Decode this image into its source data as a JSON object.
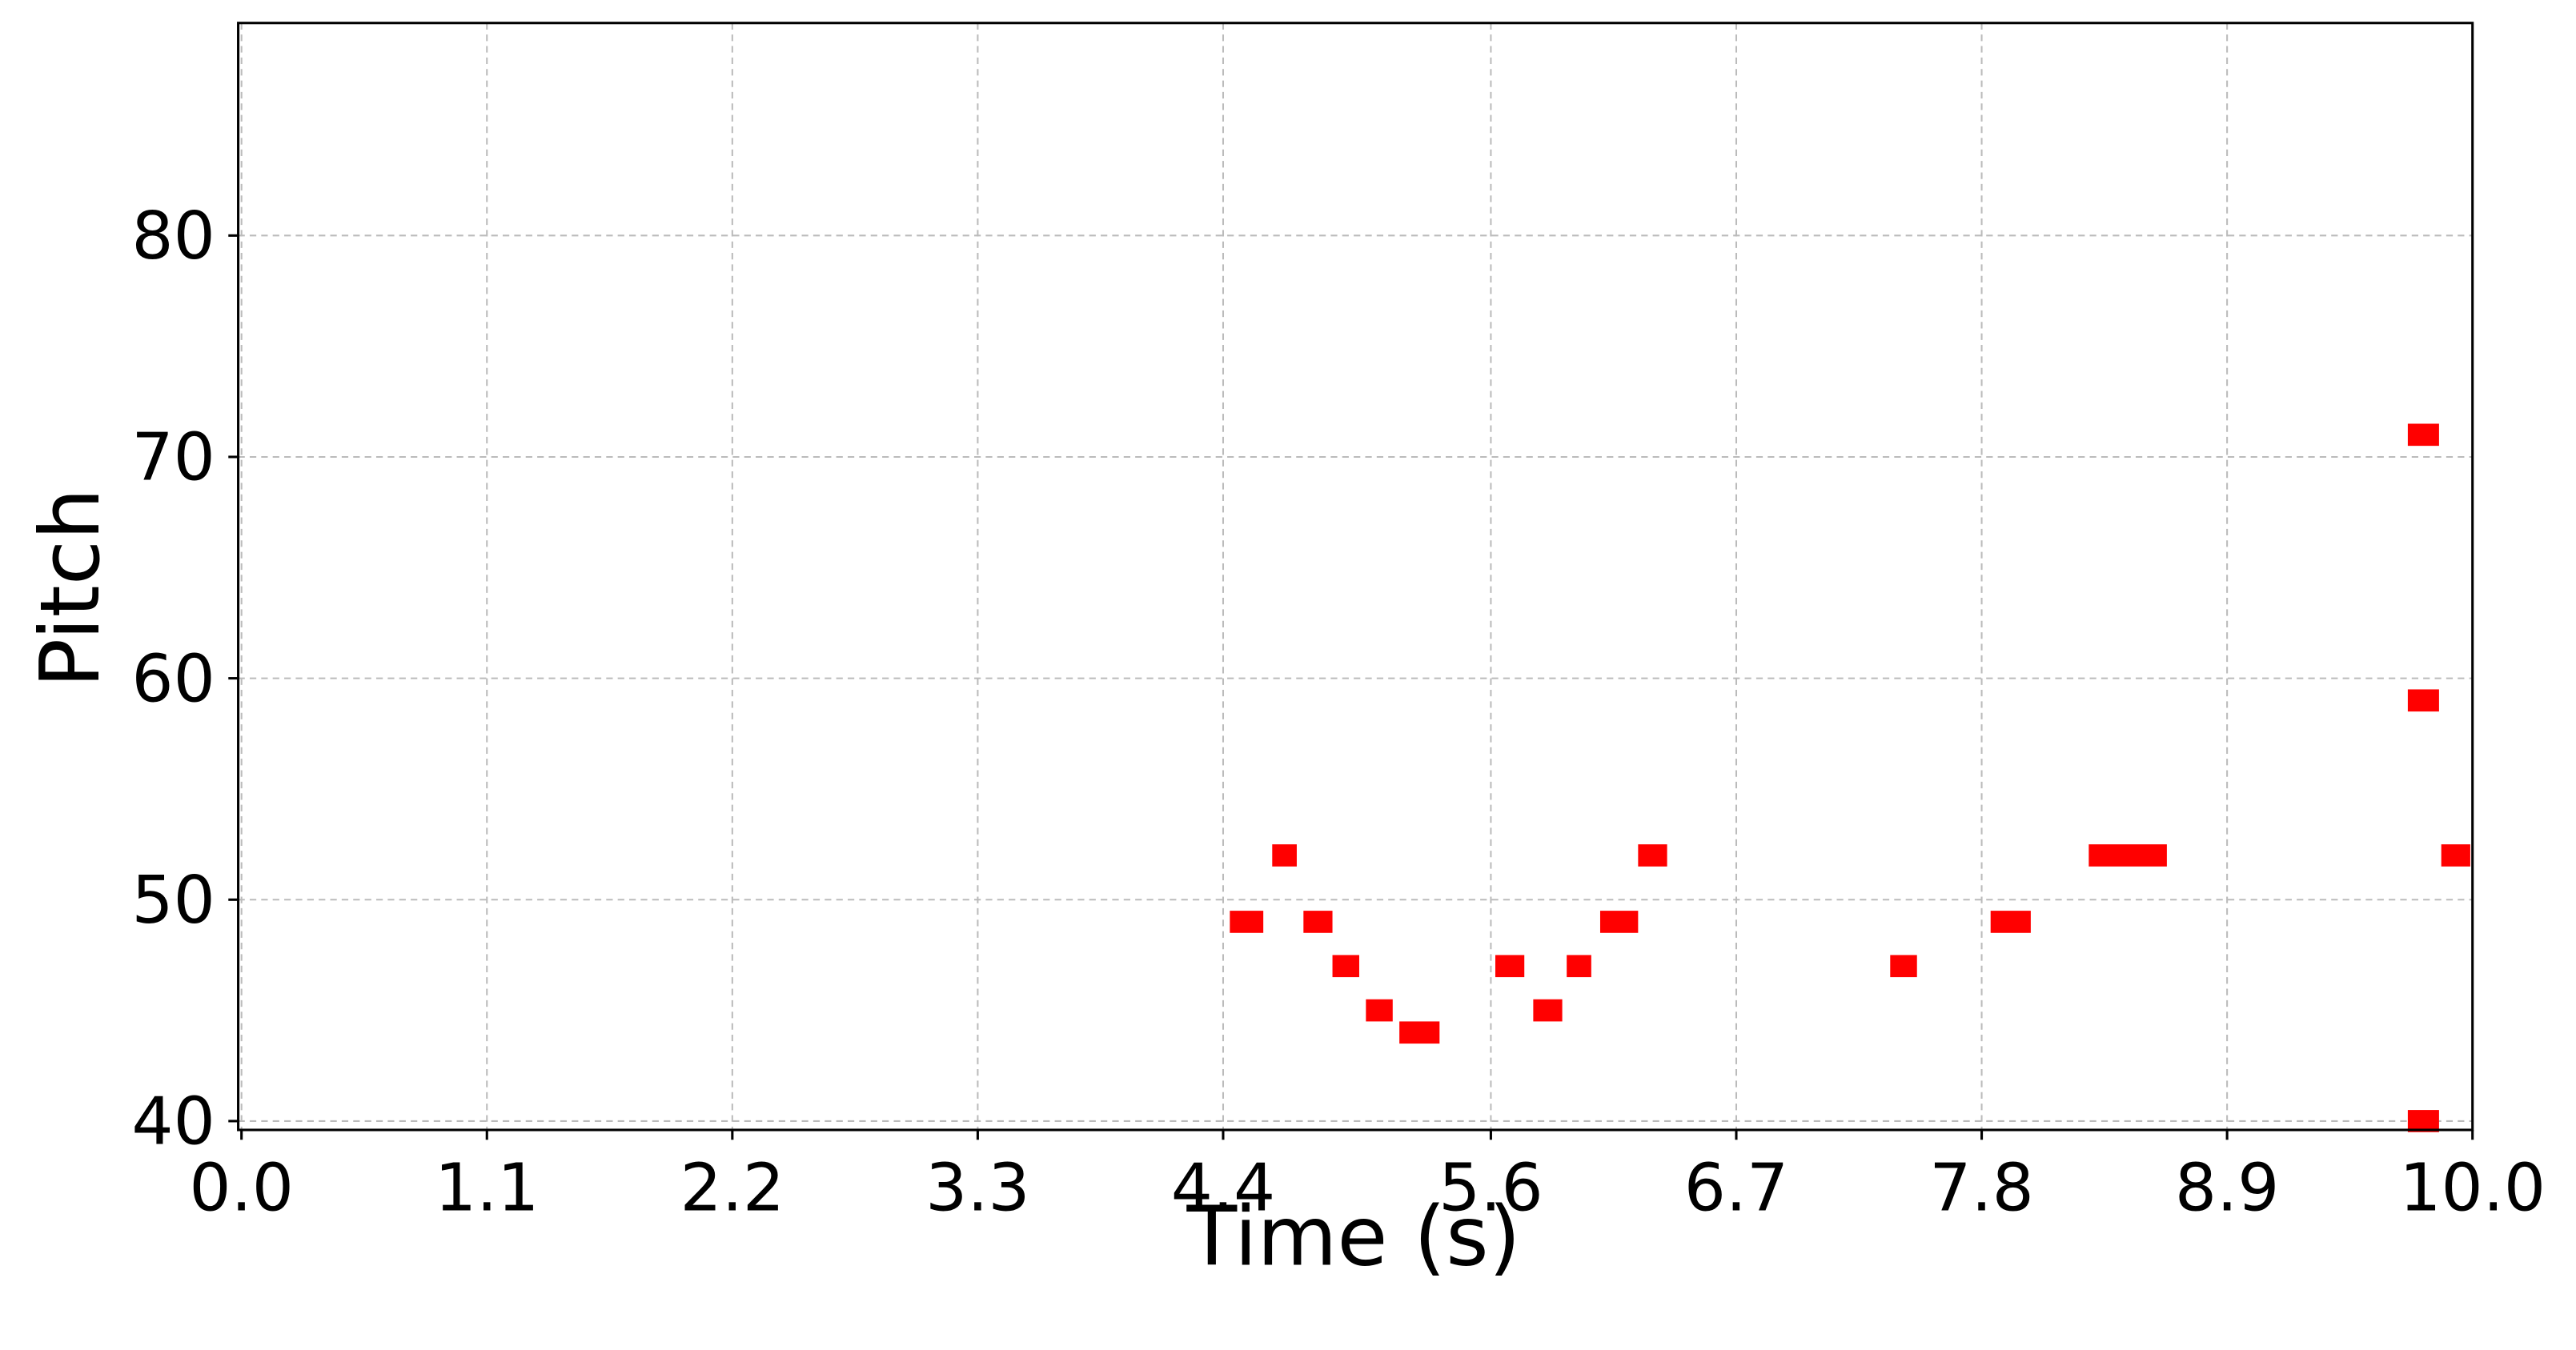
{
  "chart_data": {
    "type": "piano_roll",
    "xlabel": "Time (s)",
    "ylabel": "Pitch",
    "series": [
      {
        "color": "#ff0000",
        "x": [
          4.43,
          4.62,
          4.76,
          4.89,
          5.04,
          5.19,
          5.62,
          5.79,
          5.94,
          6.09,
          6.26,
          7.39,
          7.84,
          8.28,
          9.71,
          9.71,
          9.71,
          9.86
        ],
        "x_end": [
          4.58,
          4.73,
          4.89,
          5.01,
          5.16,
          5.37,
          5.75,
          5.92,
          6.05,
          6.26,
          6.39,
          7.51,
          8.02,
          8.63,
          9.85,
          9.85,
          9.85,
          9.99
        ],
        "values": [
          49,
          52,
          49,
          47,
          45,
          44,
          47,
          45,
          47,
          49,
          52,
          47,
          49,
          52,
          71,
          59,
          40,
          52
        ]
      }
    ],
    "xlim": [
      0,
      10
    ],
    "xticks": [
      {
        "value": 0,
        "label": "0.0"
      },
      1.1,
      2.2,
      3.3,
      4.4,
      5.6,
      6.7,
      7.8,
      8.9,
      {
        "value": 10,
        "label": "10.0"
      }
    ],
    "ylim": [
      39.6,
      89.6
    ],
    "yticks": [
      40,
      50,
      60,
      70,
      80
    ],
    "grid": true
  }
}
